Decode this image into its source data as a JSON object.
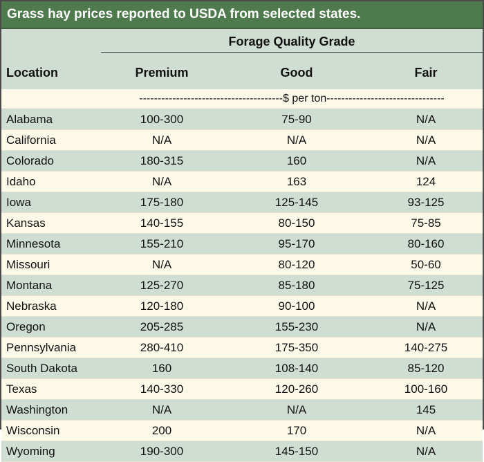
{
  "title": "Grass hay prices reported to USDA from selected states.",
  "header": {
    "group_label": "Forage Quality Grade",
    "location_label": "Location",
    "columns": [
      "Premium",
      "Good",
      "Fair"
    ]
  },
  "units_label": "---------------------------------------$ per ton--------------------------------",
  "rows": [
    {
      "location": "Alabama",
      "premium": "100-300",
      "good": "75-90",
      "fair": "N/A"
    },
    {
      "location": "California",
      "premium": "N/A",
      "good": "N/A",
      "fair": "N/A"
    },
    {
      "location": "Colorado",
      "premium": "180-315",
      "good": "160",
      "fair": "N/A"
    },
    {
      "location": "Idaho",
      "premium": "N/A",
      "good": "163",
      "fair": "124"
    },
    {
      "location": "Iowa",
      "premium": "175-180",
      "good": "125-145",
      "fair": "93-125"
    },
    {
      "location": "Kansas",
      "premium": "140-155",
      "good": "80-150",
      "fair": "75-85"
    },
    {
      "location": "Minnesota",
      "premium": "155-210",
      "good": "95-170",
      "fair": "80-160"
    },
    {
      "location": "Missouri",
      "premium": "N/A",
      "good": "80-120",
      "fair": "50-60"
    },
    {
      "location": "Montana",
      "premium": "125-270",
      "good": "85-180",
      "fair": "75-125"
    },
    {
      "location": "Nebraska",
      "premium": "120-180",
      "good": "90-100",
      "fair": "N/A"
    },
    {
      "location": "Oregon",
      "premium": "205-285",
      "good": "155-230",
      "fair": "N/A"
    },
    {
      "location": "Pennsylvania",
      "premium": "280-410",
      "good": "175-350",
      "fair": "140-275"
    },
    {
      "location": "South Dakota",
      "premium": "160",
      "good": "108-140",
      "fair": "85-120"
    },
    {
      "location": "Texas",
      "premium": "140-330",
      "good": "120-260",
      "fair": "100-160"
    },
    {
      "location": "Washington",
      "premium": "N/A",
      "good": "N/A",
      "fair": "145"
    },
    {
      "location": "Wisconsin",
      "premium": "200",
      "good": "170",
      "fair": "N/A"
    },
    {
      "location": "Wyoming",
      "premium": "190-300",
      "good": "145-150",
      "fair": "N/A"
    }
  ]
}
